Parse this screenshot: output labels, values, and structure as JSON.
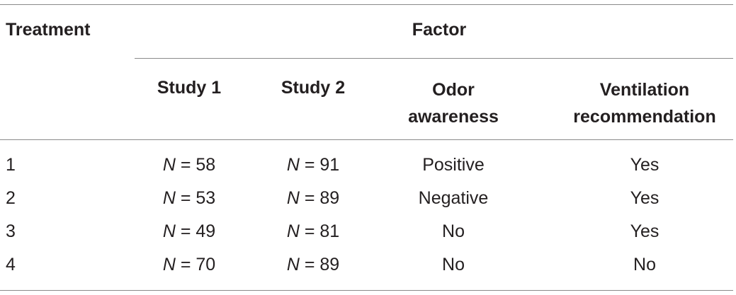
{
  "table": {
    "header": {
      "treatment": "Treatment",
      "factor": "Factor",
      "study1": "Study 1",
      "study2": "Study 2",
      "odor_line1": "Odor",
      "odor_line2": "awareness",
      "vent_line1": "Ventilation",
      "vent_line2": "recommendation"
    },
    "rows": [
      {
        "treatment": "1",
        "s1_var": "N",
        "s1_val": " = 58",
        "s2_var": "N",
        "s2_val": " = 91",
        "odor": "Positive",
        "vent": "Yes"
      },
      {
        "treatment": "2",
        "s1_var": "N",
        "s1_val": " = 53",
        "s2_var": "N",
        "s2_val": " = 89",
        "odor": "Negative",
        "vent": "Yes"
      },
      {
        "treatment": "3",
        "s1_var": "N",
        "s1_val": " = 49",
        "s2_var": "N",
        "s2_val": " = 81",
        "odor": "No",
        "vent": "Yes"
      },
      {
        "treatment": "4",
        "s1_var": "N",
        "s1_val": " = 70",
        "s2_var": "N",
        "s2_val": " = 89",
        "odor": "No",
        "vent": "No"
      }
    ]
  }
}
